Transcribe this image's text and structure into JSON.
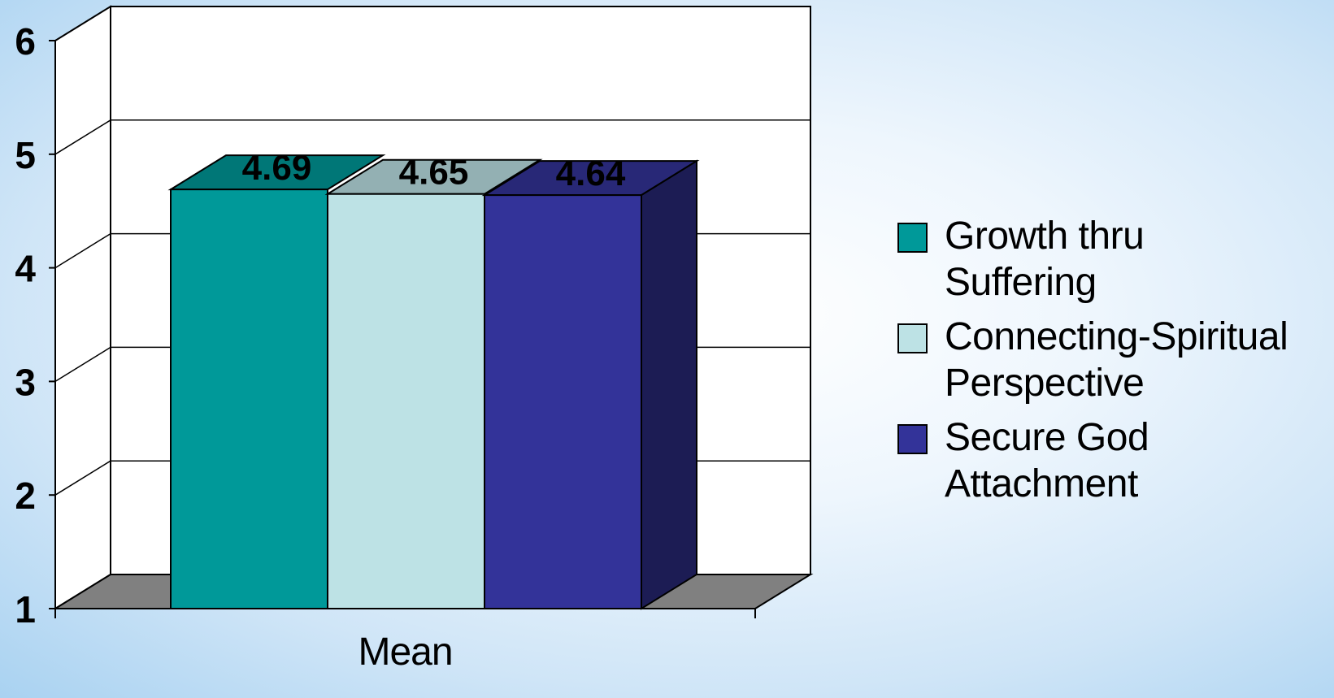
{
  "chart_data": {
    "type": "bar",
    "categories": [
      "Mean"
    ],
    "series": [
      {
        "name": "Growth thru\nSuffering",
        "values": [
          4.69
        ],
        "color": "#009999"
      },
      {
        "name": "Connecting-Spiritual\nPerspective",
        "values": [
          4.65
        ],
        "color": "#bde2e5"
      },
      {
        "name": "Secure God\nAttachment",
        "values": [
          4.64
        ],
        "color": "#333399"
      }
    ],
    "data_labels": [
      "4.69",
      "4.65",
      "4.64"
    ],
    "y_ticks": [
      "1",
      "2",
      "3",
      "4",
      "5",
      "6"
    ],
    "ylim": [
      1,
      6
    ],
    "grid": true,
    "style": "3d-column",
    "legend_position": "right",
    "floor_color": "#808080",
    "gridline_color": "#000000"
  }
}
